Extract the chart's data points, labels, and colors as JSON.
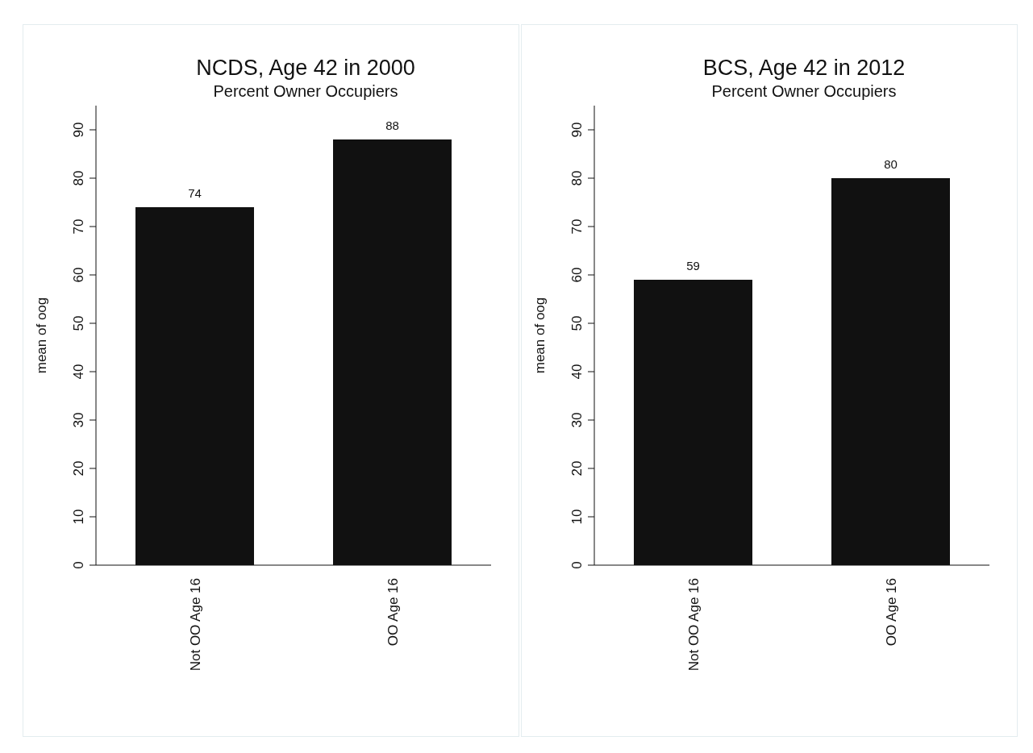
{
  "chart_data": [
    {
      "type": "bar",
      "title": "NCDS, Age 42 in 2000",
      "subtitle": "Percent Owner Occupiers",
      "ylabel": "mean of oog",
      "categories": [
        "Not OO Age 16",
        "OO Age 16"
      ],
      "values": [
        74,
        88
      ],
      "color": "#111111",
      "ylim": [
        0,
        95
      ],
      "yticks": [
        0,
        10,
        20,
        30,
        40,
        50,
        60,
        70,
        80,
        90
      ],
      "data_labels": true,
      "grid": false,
      "legend": false
    },
    {
      "type": "bar",
      "title": "BCS, Age 42 in 2012",
      "subtitle": "Percent Owner Occupiers",
      "ylabel": "mean of oog",
      "categories": [
        "Not OO Age 16",
        "OO Age 16"
      ],
      "values": [
        59,
        80
      ],
      "color": "#111111",
      "ylim": [
        0,
        95
      ],
      "yticks": [
        0,
        10,
        20,
        30,
        40,
        50,
        60,
        70,
        80,
        90
      ],
      "data_labels": true,
      "grid": false,
      "legend": false
    }
  ]
}
